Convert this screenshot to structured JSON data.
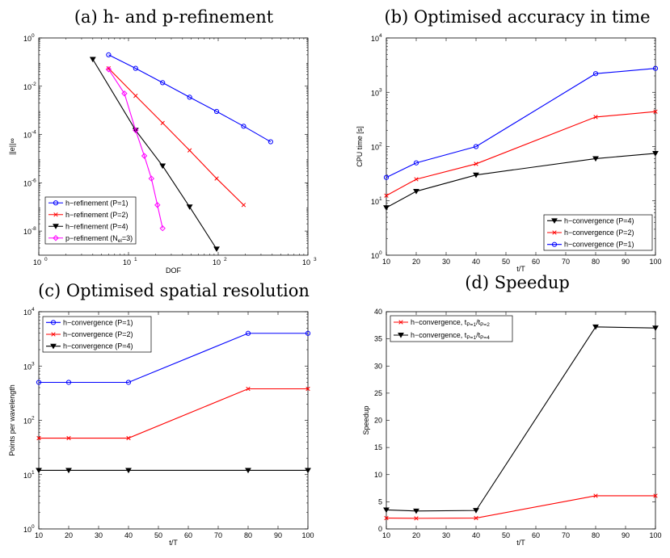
{
  "chart_data": [
    {
      "type": "line",
      "title": "(a) h- and p-refinement",
      "xlabel": "DOF",
      "ylabel": "||e||∞",
      "xscale": "log",
      "yscale": "log",
      "xlim": [
        1,
        1000
      ],
      "ylim": [
        1e-09,
        1
      ],
      "xticks": [
        1,
        10,
        100,
        1000
      ],
      "yticks": [
        1e-08,
        1e-06,
        0.0001,
        0.01,
        1
      ],
      "legend_loc": "lower-left",
      "series": [
        {
          "name": "h−refinement (P=1)",
          "color": "#0000ff",
          "marker": "circle",
          "x": [
            6,
            12,
            24,
            48,
            96,
            192,
            384
          ],
          "y": [
            0.2,
            0.055,
            0.014,
            0.0035,
            0.0009,
            0.00022,
            5e-05
          ]
        },
        {
          "name": "h−refinement (P=2)",
          "color": "#ff0000",
          "marker": "x",
          "x": [
            6,
            12,
            24,
            48,
            96,
            192
          ],
          "y": [
            0.055,
            0.004,
            0.0003,
            2.2e-05,
            1.5e-06,
            1.2e-07
          ]
        },
        {
          "name": "h−refinement (P=4)",
          "color": "#000000",
          "marker": "triangle-down",
          "x": [
            4,
            12,
            24,
            48,
            96
          ],
          "y": [
            0.13,
            0.00015,
            5e-06,
            1e-07,
            1.8e-09
          ]
        },
        {
          "name": "p−refinement (N",
          "name_sub": "el",
          "name_tail": "=3)",
          "color": "#ff00ff",
          "marker": "diamond",
          "x": [
            6,
            9,
            12,
            15,
            18,
            21,
            24
          ],
          "y": [
            0.05,
            0.005,
            0.00015,
            1.3e-05,
            1.5e-06,
            1.2e-07,
            1.3e-08
          ]
        }
      ]
    },
    {
      "type": "line",
      "title": "(b) Optimised accuracy in time",
      "xlabel": "t/T",
      "ylabel": "CPU time [s]",
      "xscale": "linear",
      "yscale": "log",
      "xlim": [
        10,
        100
      ],
      "ylim": [
        1,
        10000
      ],
      "xticks": [
        10,
        20,
        30,
        40,
        50,
        60,
        70,
        80,
        90,
        100
      ],
      "yticks": [
        1,
        10,
        100,
        1000,
        10000
      ],
      "legend_loc": "lower-right",
      "series": [
        {
          "name": "h−convergence (P=4)",
          "color": "#000000",
          "marker": "triangle-down",
          "x": [
            10,
            20,
            40,
            80,
            100
          ],
          "y": [
            7.5,
            15,
            30,
            60,
            75
          ]
        },
        {
          "name": "h−convergence (P=2)",
          "color": "#ff0000",
          "marker": "x",
          "x": [
            10,
            20,
            40,
            80,
            100
          ],
          "y": [
            12.5,
            25,
            48,
            350,
            440
          ]
        },
        {
          "name": "h−convergence (P=1)",
          "color": "#0000ff",
          "marker": "circle",
          "x": [
            10,
            20,
            40,
            80,
            100
          ],
          "y": [
            27,
            50,
            100,
            2200,
            2750
          ]
        }
      ]
    },
    {
      "type": "line",
      "title": "(c) Optimised spatial resolution",
      "xlabel": "t/T",
      "ylabel": "Points per wavelength",
      "xscale": "linear",
      "yscale": "log",
      "xlim": [
        10,
        100
      ],
      "ylim": [
        1,
        10000
      ],
      "xticks": [
        10,
        20,
        30,
        40,
        50,
        60,
        70,
        80,
        90,
        100
      ],
      "yticks": [
        1,
        10,
        100,
        1000,
        10000
      ],
      "legend_loc": "top-left",
      "series": [
        {
          "name": "h−convergence (P=1)",
          "color": "#0000ff",
          "marker": "circle",
          "x": [
            10,
            20,
            40,
            80,
            100
          ],
          "y": [
            500,
            500,
            500,
            4000,
            4000
          ]
        },
        {
          "name": "h−convergence (P=2)",
          "color": "#ff0000",
          "marker": "x",
          "x": [
            10,
            20,
            40,
            80,
            100
          ],
          "y": [
            47,
            47,
            47,
            380,
            380
          ]
        },
        {
          "name": "h−convergence (P=4)",
          "color": "#000000",
          "marker": "triangle-down",
          "x": [
            10,
            20,
            40,
            80,
            100
          ],
          "y": [
            12,
            12,
            12,
            12,
            12
          ]
        }
      ]
    },
    {
      "type": "line",
      "title": "(d) Speedup",
      "xlabel": "t/T",
      "ylabel": "Speedup",
      "xscale": "linear",
      "yscale": "linear",
      "xlim": [
        10,
        100
      ],
      "ylim": [
        0,
        40
      ],
      "xticks": [
        10,
        20,
        30,
        40,
        50,
        60,
        70,
        80,
        90,
        100
      ],
      "yticks": [
        0,
        5,
        10,
        15,
        20,
        25,
        30,
        35,
        40
      ],
      "legend_loc": "top-left",
      "series": [
        {
          "name": "h−convergence, t",
          "name_sub": "P=1",
          "name_mid": "/t",
          "name_sub2": "P=2",
          "color": "#ff0000",
          "marker": "x",
          "x": [
            10,
            20,
            40,
            80,
            100
          ],
          "y": [
            2.0,
            1.95,
            2.0,
            6.1,
            6.1
          ]
        },
        {
          "name": "h−convergence, t",
          "name_sub": "P=1",
          "name_mid": "/t",
          "name_sub2": "P=4",
          "color": "#000000",
          "marker": "triangle-down",
          "x": [
            10,
            20,
            40,
            80,
            100
          ],
          "y": [
            3.5,
            3.3,
            3.4,
            37.2,
            37.0
          ]
        }
      ]
    }
  ]
}
